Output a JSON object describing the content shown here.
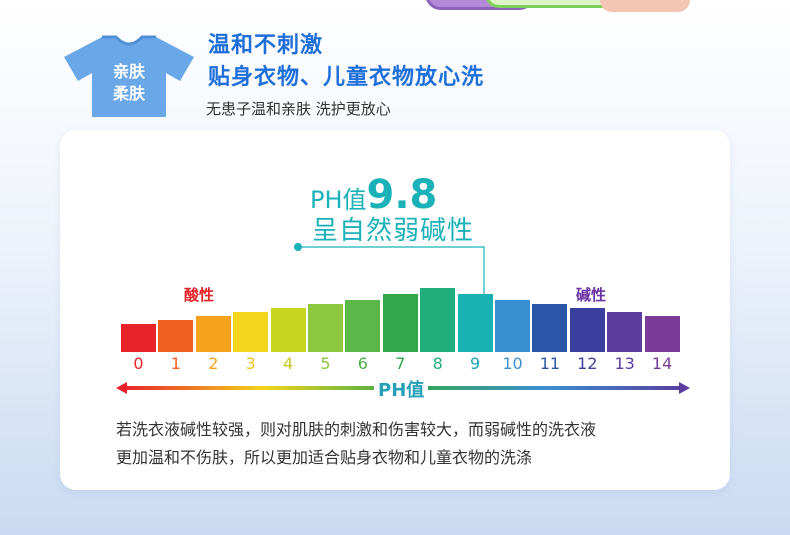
{
  "badge": {
    "line1": "亲肤",
    "line2": "柔肤",
    "icon": "tshirt-icon"
  },
  "headline": {
    "line1": "温和不刺激",
    "line2": "贴身衣物、儿童衣物放心洗"
  },
  "subline": "无患子温和亲肤 洗护更放心",
  "ph_callout": {
    "prefix": "PH值",
    "value": "9.8",
    "description": "呈自然弱碱性"
  },
  "scale": {
    "acid_label": "酸性",
    "alkali_label": "碱性",
    "axis_label": "PH值",
    "ticks": [
      "0",
      "1",
      "2",
      "3",
      "4",
      "5",
      "6",
      "7",
      "8",
      "9",
      "10",
      "11",
      "12",
      "13",
      "14"
    ],
    "colors": [
      "#e8242a",
      "#f0601f",
      "#f5a21d",
      "#f3d51c",
      "#c8d51f",
      "#8dc63f",
      "#5ab848",
      "#32a84a",
      "#22ae7c",
      "#18b2b4",
      "#3a8fd0",
      "#2b56a8",
      "#3a3f9d",
      "#5a3d9e",
      "#7a3b97"
    ],
    "tick_colors": [
      "#e8242a",
      "#f0601f",
      "#f5a21d",
      "#f3c51c",
      "#c8c81f",
      "#8dc63f",
      "#4cae48",
      "#32a84a",
      "#22ae7c",
      "#18a2b4",
      "#3a8fd0",
      "#2b56a8",
      "#3a3f9d",
      "#5a3d9e",
      "#7a3b97"
    ]
  },
  "note": {
    "line1": "若洗衣液碱性较强，则对肌肤的刺激和伤害较大，而弱碱性的洗衣液",
    "line2": "更加温和不伤肤，所以更加适合贴身衣物和儿童衣物的洗涤"
  }
}
